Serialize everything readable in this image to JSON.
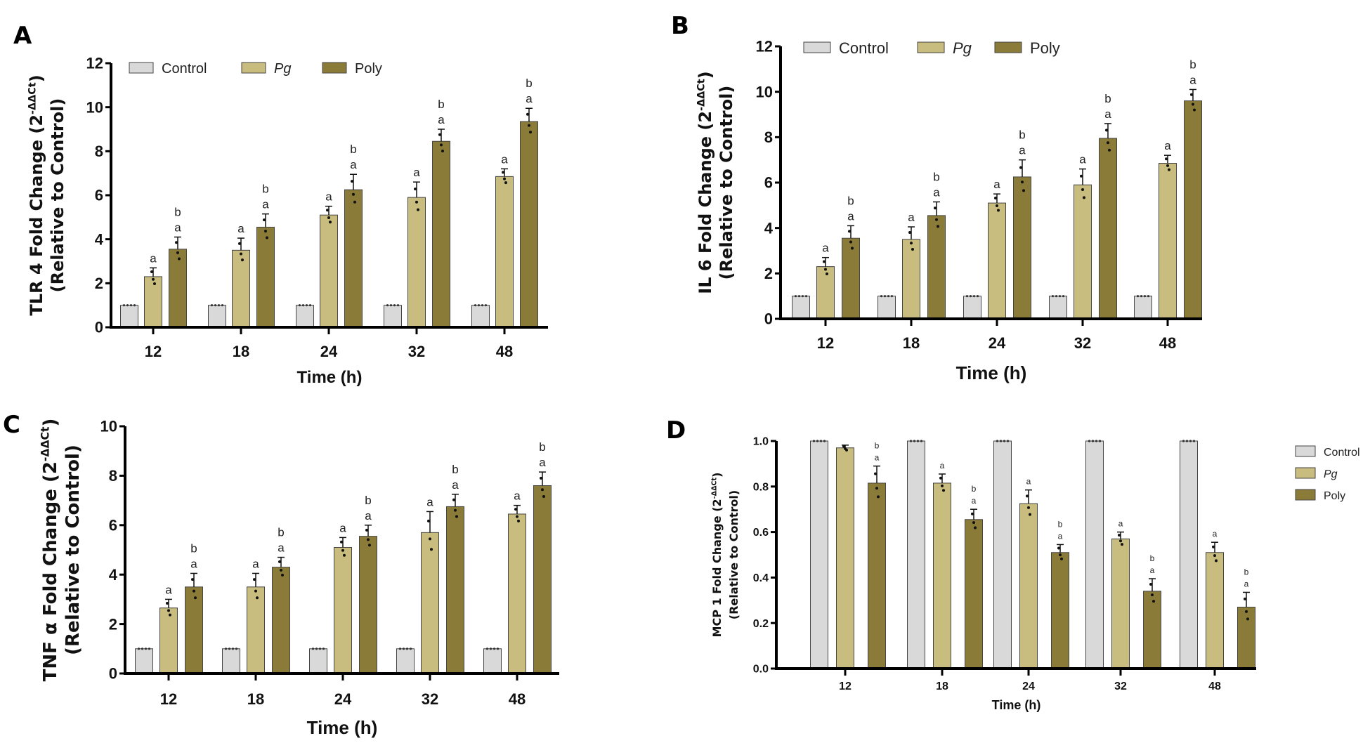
{
  "colors": {
    "Control": "#d9d9d9",
    "Pg": "#c8bd7e",
    "Poly": "#8b7b38",
    "axis": "#000000"
  },
  "chart_data": [
    {
      "panel": "A",
      "type": "bar",
      "title": "",
      "ylabel_line1": "TLR 4 Fold Change (2",
      "ylabel_sup": "-ΔΔCt",
      "ylabel_close": ")",
      "ylabel_line2": "(Relative to Control)",
      "xlabel": "Time (h)",
      "categories": [
        "12",
        "18",
        "24",
        "32",
        "48"
      ],
      "ylim": [
        0,
        12
      ],
      "yticks": [
        "0",
        "2",
        "4",
        "6",
        "8",
        "10",
        "12"
      ],
      "ytick_values": [
        0,
        2,
        4,
        6,
        8,
        10,
        12
      ],
      "legend": {
        "placement": "top-inside",
        "entries": [
          "Control",
          "Pg",
          "Poly"
        ]
      },
      "series": [
        {
          "name": "Control",
          "values": [
            1,
            1,
            1,
            1,
            1
          ],
          "errors": [
            0,
            0,
            0,
            0,
            0
          ],
          "sig": [
            "",
            "",
            "",
            "",
            ""
          ]
        },
        {
          "name": "Pg",
          "values": [
            2.3,
            3.5,
            5.1,
            5.9,
            6.85
          ],
          "errors": [
            0.4,
            0.55,
            0.4,
            0.7,
            0.35
          ],
          "sig": [
            "a",
            "a",
            "a",
            "a",
            "a"
          ]
        },
        {
          "name": "Poly",
          "values": [
            3.55,
            4.55,
            6.25,
            8.45,
            9.35
          ],
          "errors": [
            0.55,
            0.6,
            0.7,
            0.55,
            0.6
          ],
          "sig": [
            "b a",
            "b a",
            "b a",
            "b a",
            "b a"
          ]
        }
      ]
    },
    {
      "panel": "B",
      "type": "bar",
      "title": "",
      "ylabel_line1": "IL 6 Fold Change (2",
      "ylabel_sup": "-ΔΔCt",
      "ylabel_close": ")",
      "ylabel_line2": "(Relative to Control)",
      "xlabel": "Time (h)",
      "categories": [
        "12",
        "18",
        "24",
        "32",
        "48"
      ],
      "ylim": [
        0,
        12
      ],
      "yticks": [
        "0",
        "2",
        "4",
        "6",
        "8",
        "10",
        "12"
      ],
      "ytick_values": [
        0,
        2,
        4,
        6,
        8,
        10,
        12
      ],
      "legend": {
        "placement": "top-inside",
        "entries": [
          "Control",
          "Pg",
          "Poly"
        ]
      },
      "series": [
        {
          "name": "Control",
          "values": [
            1,
            1,
            1,
            1,
            1
          ],
          "errors": [
            0,
            0,
            0,
            0,
            0
          ],
          "sig": [
            "",
            "",
            "",
            "",
            ""
          ]
        },
        {
          "name": "Pg",
          "values": [
            2.3,
            3.5,
            5.1,
            5.9,
            6.85
          ],
          "errors": [
            0.4,
            0.55,
            0.4,
            0.7,
            0.35
          ],
          "sig": [
            "a",
            "a",
            "a",
            "a",
            "a"
          ]
        },
        {
          "name": "Poly",
          "values": [
            3.55,
            4.55,
            6.25,
            7.95,
            9.6
          ],
          "errors": [
            0.55,
            0.6,
            0.75,
            0.65,
            0.5
          ],
          "sig": [
            "b a",
            "b a",
            "b a",
            "b a",
            "b a"
          ]
        }
      ]
    },
    {
      "panel": "C",
      "type": "bar",
      "title": "",
      "ylabel_line1": "TNF α Fold Change (2",
      "ylabel_sup": "-ΔΔCt",
      "ylabel_close": ")",
      "ylabel_line2": "(Relative to Control)",
      "xlabel": "Time (h)",
      "categories": [
        "12",
        "18",
        "24",
        "32",
        "48"
      ],
      "ylim": [
        0,
        10
      ],
      "yticks": [
        "0",
        "2",
        "4",
        "6",
        "8",
        "10"
      ],
      "ytick_values": [
        0,
        2,
        4,
        6,
        8,
        10
      ],
      "legend": {
        "placement": "none",
        "entries": []
      },
      "series": [
        {
          "name": "Control",
          "values": [
            1,
            1,
            1,
            1,
            1
          ],
          "errors": [
            0,
            0,
            0,
            0,
            0
          ],
          "sig": [
            "",
            "",
            "",
            "",
            ""
          ]
        },
        {
          "name": "Pg",
          "values": [
            2.65,
            3.5,
            5.1,
            5.7,
            6.45
          ],
          "errors": [
            0.35,
            0.55,
            0.4,
            0.85,
            0.35
          ],
          "sig": [
            "a",
            "a",
            "a",
            "a",
            "a"
          ]
        },
        {
          "name": "Poly",
          "values": [
            3.5,
            4.3,
            5.55,
            6.75,
            7.6
          ],
          "errors": [
            0.55,
            0.4,
            0.45,
            0.5,
            0.55
          ],
          "sig": [
            "b a",
            "b a",
            "b a",
            "b a",
            "b a"
          ]
        }
      ]
    },
    {
      "panel": "D",
      "type": "bar",
      "title": "",
      "ylabel_line1": "MCP 1 Fold Change (2",
      "ylabel_sup": "-ΔΔCt",
      "ylabel_close": ")",
      "ylabel_line2": "(Relative to Control)",
      "xlabel": "Time (h)",
      "categories": [
        "12",
        "18",
        "24",
        "32",
        "48"
      ],
      "ylim": [
        0,
        1.0
      ],
      "yticks": [
        "0.0",
        "0.2",
        "0.4",
        "0.6",
        "0.8",
        "1.0"
      ],
      "ytick_values": [
        0,
        0.2,
        0.4,
        0.6,
        0.8,
        1.0
      ],
      "legend": {
        "placement": "right",
        "entries": [
          "Control",
          "Pg",
          "Poly"
        ]
      },
      "series": [
        {
          "name": "Control",
          "values": [
            1,
            1,
            1,
            1,
            1
          ],
          "errors": [
            0,
            0,
            0,
            0,
            0
          ],
          "sig": [
            "",
            "",
            "",
            "",
            ""
          ]
        },
        {
          "name": "Pg",
          "values": [
            0.97,
            0.815,
            0.725,
            0.57,
            0.51
          ],
          "errors": [
            0.012,
            0.04,
            0.06,
            0.03,
            0.045
          ],
          "sig": [
            "",
            "a",
            "a",
            "a",
            "a"
          ]
        },
        {
          "name": "Poly",
          "values": [
            0.815,
            0.655,
            0.51,
            0.34,
            0.27
          ],
          "errors": [
            0.075,
            0.045,
            0.035,
            0.055,
            0.065
          ],
          "sig": [
            "b a",
            "b a",
            "b a",
            "b a",
            "b a"
          ]
        }
      ]
    }
  ]
}
